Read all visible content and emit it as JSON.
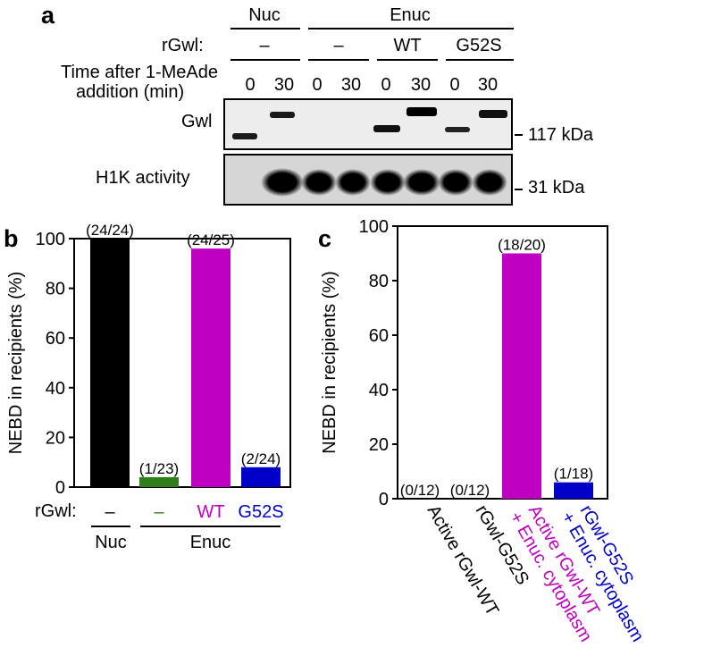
{
  "panel_a": {
    "letter": "a",
    "group_headers": [
      "Nuc",
      "Enuc"
    ],
    "rgwl_label": "rGwl:",
    "rgwl_values": [
      "–",
      "–",
      "WT",
      "G52S"
    ],
    "time_label_line1": "Time after 1-MeAde",
    "time_label_line2": "addition (min)",
    "times": [
      "0",
      "30",
      "0",
      "30",
      "0",
      "30",
      "0",
      "30"
    ],
    "blot1_label": "Gwl",
    "blot2_label": "H1K activity",
    "marker1": "117 kDa",
    "marker2": "31 kDa"
  },
  "panel_b": {
    "letter": "b",
    "rgwl_label": "rGwl:",
    "group_labels": [
      "Nuc",
      "Enuc"
    ]
  },
  "panel_c": {
    "letter": "c"
  },
  "chart_data": [
    {
      "type": "bar",
      "categories": [
        "–",
        "–",
        "WT",
        "G52S"
      ],
      "values": [
        100,
        4,
        96,
        8
      ],
      "annotations": [
        "(24/24)",
        "(1/23)",
        "(24/25)",
        "(2/24)"
      ],
      "colors": [
        "#000000",
        "#2e7d1a",
        "#c000c0",
        "#0000c8"
      ],
      "ylabel": "NEBD in recipients (%)",
      "ylim": [
        0,
        100
      ],
      "yticks": [
        "0",
        "20",
        "40",
        "60",
        "80",
        "100"
      ],
      "grid": false
    },
    {
      "type": "bar",
      "categories": [
        "Active rGwl-WT",
        "rGwl-G52S",
        "Active rGwl-WT",
        "rGwl-G52S"
      ],
      "category_second_lines": [
        "",
        "",
        "+ Enuc. cytoplasm",
        "+ Enuc. cytoplasm"
      ],
      "values": [
        0,
        0,
        90,
        6
      ],
      "annotations": [
        "(0/12)",
        "(0/12)",
        "(18/20)",
        "(1/18)"
      ],
      "colors": [
        "#000000",
        "#000000",
        "#c000c0",
        "#0000c8"
      ],
      "ylabel": "NEBD in recipients (%)",
      "ylim": [
        0,
        100
      ],
      "yticks": [
        "0",
        "20",
        "40",
        "60",
        "80",
        "100"
      ],
      "grid": false
    }
  ]
}
